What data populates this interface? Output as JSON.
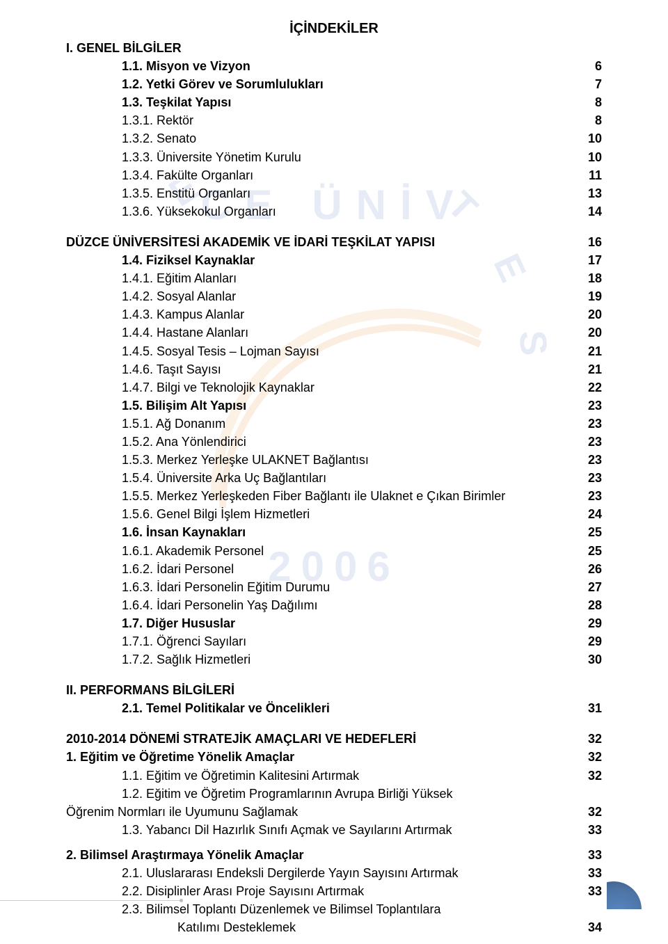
{
  "title": "İÇİNDEKİLER",
  "watermark": {
    "top": "CE   ÜNİV",
    "arc": "ERSİTESİ",
    "year": "2006"
  },
  "colors": {
    "text": "#000000",
    "wm": "#c8d5ea",
    "arc_accent": "#e98f3b",
    "badge": "#2d5a94"
  },
  "toc": [
    {
      "label": "I. GENEL BİLGİLER",
      "bold": true,
      "indent": 0
    },
    {
      "label": "1.1. Misyon ve Vizyon",
      "bold": true,
      "indent": 1,
      "page": "6"
    },
    {
      "label": "1.2. Yetki Görev ve Sorumlulukları",
      "bold": true,
      "indent": 1,
      "page": "7"
    },
    {
      "label": "1.3. Teşkilat Yapısı",
      "bold": true,
      "indent": 1,
      "page": "8"
    },
    {
      "label": "1.3.1. Rektör",
      "indent": 1,
      "page": "8"
    },
    {
      "label": "1.3.2. Senato",
      "indent": 1,
      "page": "10"
    },
    {
      "label": "1.3.3. Üniversite Yönetim Kurulu",
      "indent": 1,
      "page": "10"
    },
    {
      "label": "1.3.4. Fakülte Organları",
      "indent": 1,
      "page": "11"
    },
    {
      "label": "1.3.5. Enstitü Organları",
      "indent": 1,
      "page": "13"
    },
    {
      "label": "1.3.6. Yüksekokul Organları",
      "indent": 1,
      "page": "14"
    },
    {
      "gap": "blk"
    },
    {
      "label": "DÜZCE ÜNİVERSİTESİ AKADEMİK VE İDARİ TEŞKİLAT YAPISI",
      "bold": true,
      "indent": 0,
      "page": "16"
    },
    {
      "label": "1.4. Fiziksel Kaynaklar",
      "bold": true,
      "indent": 1,
      "page": "17"
    },
    {
      "label": "1.4.1. Eğitim Alanları",
      "indent": 1,
      "page": "18"
    },
    {
      "label": "1.4.2. Sosyal Alanlar",
      "indent": 1,
      "page": "19"
    },
    {
      "label": "1.4.3. Kampus Alanlar",
      "indent": 1,
      "page": "20"
    },
    {
      "label": "1.4.4. Hastane Alanları",
      "indent": 1,
      "page": "20"
    },
    {
      "label": "1.4.5. Sosyal Tesis – Lojman Sayısı",
      "indent": 1,
      "page": "21"
    },
    {
      "label": "1.4.6. Taşıt Sayısı",
      "indent": 1,
      "page": "21"
    },
    {
      "label": "1.4.7. Bilgi ve Teknolojik Kaynaklar",
      "indent": 1,
      "page": "22"
    },
    {
      "label": "1.5. Bilişim Alt Yapısı",
      "bold": true,
      "indent": 1,
      "page": "23"
    },
    {
      "label": "1.5.1. Ağ Donanım",
      "indent": 1,
      "page": "23"
    },
    {
      "label": "1.5.2. Ana Yönlendirici",
      "indent": 1,
      "page": "23"
    },
    {
      "label": "1.5.3. Merkez Yerleşke ULAKNET Bağlantısı",
      "indent": 1,
      "page": "23"
    },
    {
      "label": "1.5.4. Üniversite Arka Uç Bağlantıları",
      "indent": 1,
      "page": "23"
    },
    {
      "label": "1.5.5. Merkez Yerleşkeden Fiber Bağlantı ile Ulaknet e Çıkan Birimler",
      "indent": 1,
      "page": "23"
    },
    {
      "label": "1.5.6. Genel Bilgi İşlem Hizmetleri",
      "indent": 1,
      "page": "24"
    },
    {
      "label": "1.6. İnsan Kaynakları",
      "bold": true,
      "indent": 1,
      "page": "25"
    },
    {
      "label": "1.6.1. Akademik Personel",
      "indent": 1,
      "page": "25"
    },
    {
      "label": "1.6.2. İdari Personel",
      "indent": 1,
      "page": "26"
    },
    {
      "label": "1.6.3. İdari Personelin Eğitim Durumu",
      "indent": 1,
      "page": "27"
    },
    {
      "label": "1.6.4. İdari Personelin Yaş Dağılımı",
      "indent": 1,
      "page": "28"
    },
    {
      "label": "1.7. Diğer Hususlar",
      "bold": true,
      "indent": 1,
      "page": "29"
    },
    {
      "label": "1.7.1. Öğrenci Sayıları",
      "indent": 1,
      "page": "29"
    },
    {
      "label": "1.7.2. Sağlık Hizmetleri",
      "indent": 1,
      "page": "30"
    },
    {
      "gap": "blk"
    },
    {
      "label": "II. PERFORMANS BİLGİLERİ",
      "bold": true,
      "indent": 0
    },
    {
      "label": "2.1. Temel Politikalar ve Öncelikleri",
      "bold": true,
      "indent": 1,
      "page": "31"
    },
    {
      "gap": "blk"
    },
    {
      "label": "2010-2014 DÖNEMİ STRATEJİK AMAÇLARI VE HEDEFLERİ",
      "bold": true,
      "indent": 0,
      "page": "32"
    },
    {
      "label": "1. Eğitim ve Öğretime Yönelik Amaçlar",
      "bold": true,
      "indent": 0,
      "page": "32"
    },
    {
      "label": "1.1. Eğitim ve Öğretimin Kalitesini Artırmak",
      "indent": 1,
      "page": "32"
    },
    {
      "label": "1.2. Eğitim ve Öğretim Programlarının Avrupa Birliği Yüksek",
      "indent": 1
    },
    {
      "label": "Öğrenim Normları ile Uyumunu Sağlamak",
      "indent": 0,
      "page": "32"
    },
    {
      "label": "1.3. Yabancı Dil Hazırlık Sınıfı Açmak ve Sayılarını Artırmak",
      "indent": 1,
      "page": "33"
    },
    {
      "gap": "blk-sm"
    },
    {
      "label": "2. Bilimsel Araştırmaya Yönelik Amaçlar",
      "bold": true,
      "indent": 0,
      "page": "33"
    },
    {
      "label": "2.1. Uluslararası Endeksli Dergilerde Yayın Sayısını Artırmak",
      "indent": 1,
      "page": "33"
    },
    {
      "label": "2.2. Disiplinler Arası Proje Sayısını Artırmak",
      "indent": 1,
      "page": "33"
    },
    {
      "label": "2.3. Bilimsel Toplantı Düzenlemek ve Bilimsel Toplantılara",
      "indent": 1
    },
    {
      "label": "Katılımı Desteklemek",
      "indent": 2,
      "page": "34"
    }
  ],
  "pageNumber": "4"
}
